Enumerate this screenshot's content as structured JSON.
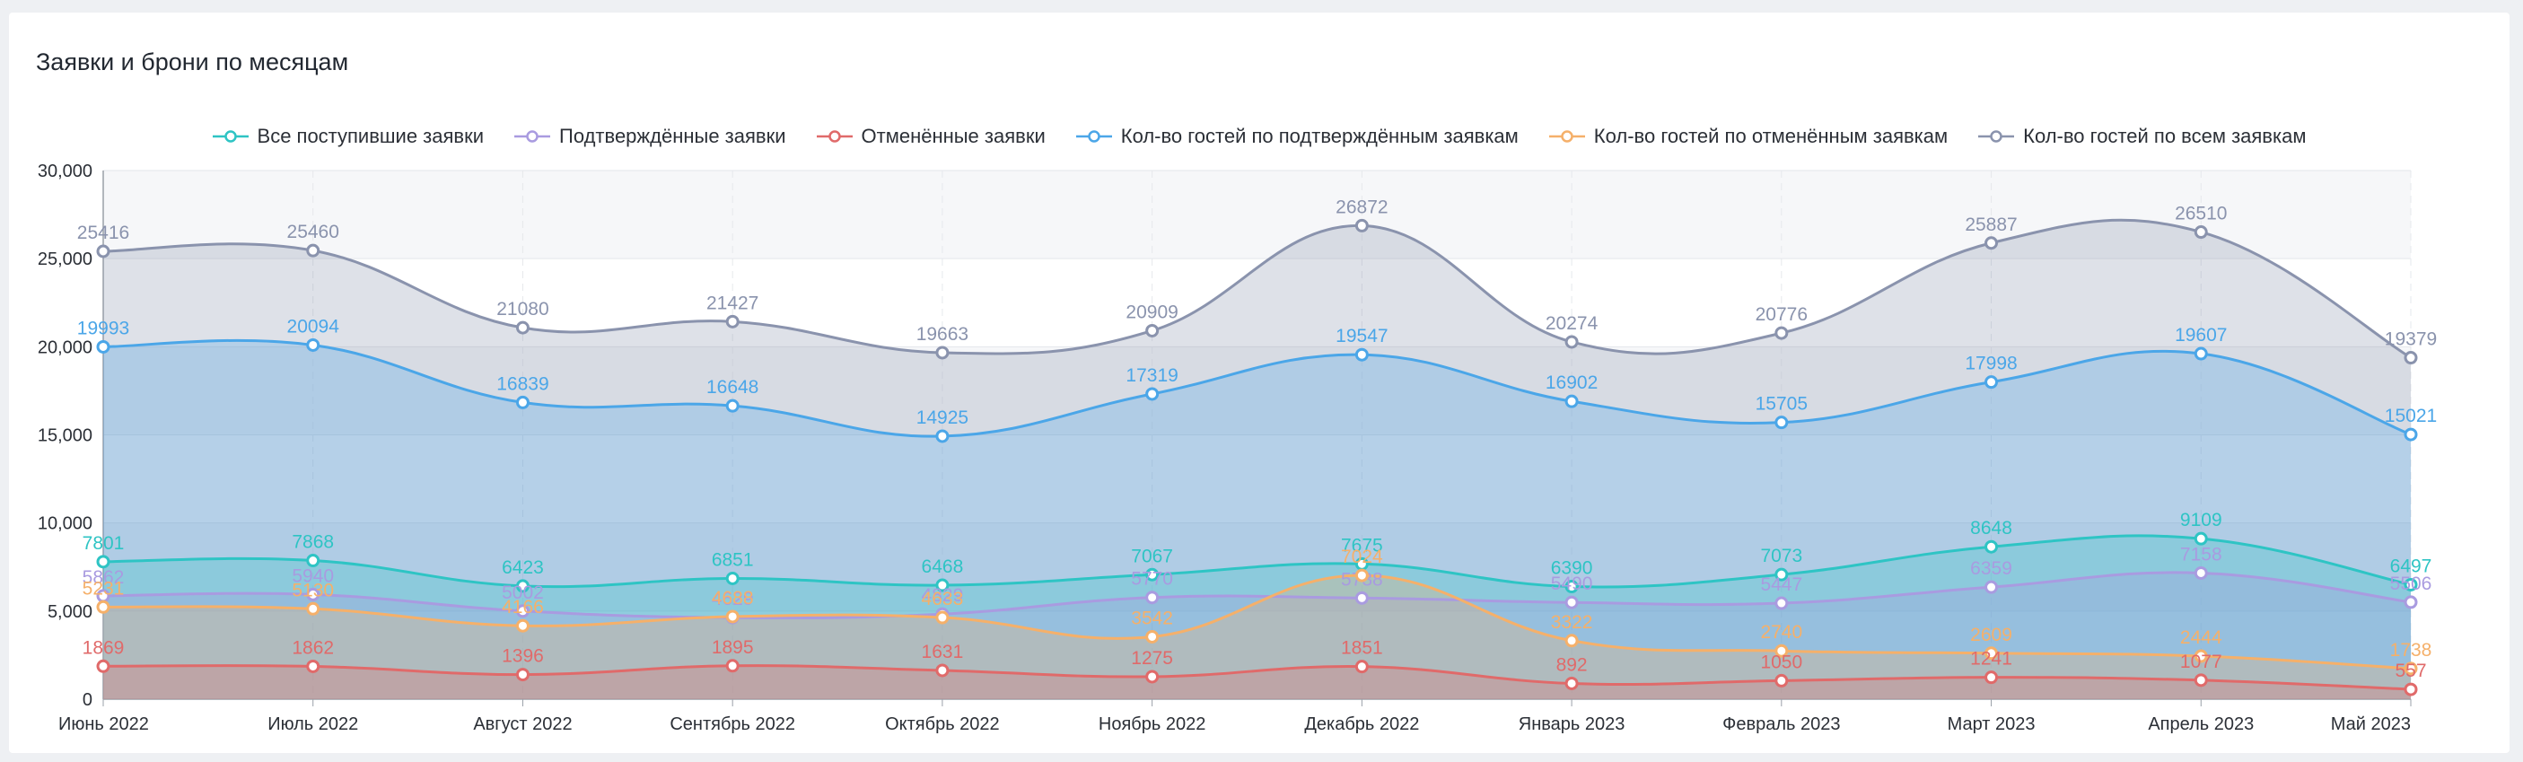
{
  "card": {
    "title": "Заявки и брони по месяцам"
  },
  "chart_data": {
    "type": "area",
    "title": "Заявки и брони по месяцам",
    "categories": [
      "Июнь 2022",
      "Июль 2022",
      "Август 2022",
      "Сентябрь 2022",
      "Октябрь 2022",
      "Ноябрь 2022",
      "Декабрь 2022",
      "Январь 2023",
      "Февраль 2023",
      "Март 2023",
      "Апрель 2023",
      "Май 2023"
    ],
    "ylim": [
      0,
      30000
    ],
    "yticks": [
      0,
      5000,
      10000,
      15000,
      20000,
      25000,
      30000
    ],
    "ytick_labels": [
      "0",
      "5,000",
      "10,000",
      "15,000",
      "20,000",
      "25,000",
      "30,000"
    ],
    "grid": true,
    "legend_position": "top-center",
    "series": [
      {
        "name": "Кол-во гостей по всем заявкам",
        "color": "#8a93ad",
        "values": [
          25416,
          25460,
          21080,
          21427,
          19663,
          20909,
          26872,
          20274,
          20776,
          25887,
          26510,
          19379
        ]
      },
      {
        "name": "Кол-во гостей по подтверждённым заявкам",
        "color": "#4ba6e8",
        "values": [
          19993,
          20094,
          16839,
          16648,
          14925,
          17319,
          19547,
          16902,
          15705,
          17998,
          19607,
          15021
        ]
      },
      {
        "name": "Все поступившие заявки",
        "color": "#2ec4c4",
        "values": [
          7801,
          7868,
          6423,
          6851,
          6468,
          7067,
          7675,
          6390,
          7073,
          8648,
          9109,
          6497
        ]
      },
      {
        "name": "Подтверждённые заявки",
        "color": "#a99be0",
        "values": [
          5862,
          5940,
          5002,
          4629,
          4829,
          5770,
          5738,
          5490,
          5447,
          6359,
          7158,
          5506
        ]
      },
      {
        "name": "Кол-во гостей по отменённым заявкам",
        "color": "#f5b06a",
        "values": [
          5231,
          5130,
          4166,
          4688,
          4633,
          3542,
          7024,
          3322,
          2740,
          2609,
          2444,
          1738
        ]
      },
      {
        "name": "Отменённые заявки",
        "color": "#e06a6a",
        "values": [
          1869,
          1862,
          1396,
          1895,
          1631,
          1275,
          1851,
          892,
          1050,
          1241,
          1077,
          557
        ]
      }
    ],
    "legend_order": [
      "Все поступившие заявки",
      "Подтверждённые заявки",
      "Отменённые заявки",
      "Кол-во гостей по подтверждённым заявкам",
      "Кол-во гостей по отменённым заявкам",
      "Кол-во гостей по всем заявкам"
    ]
  }
}
